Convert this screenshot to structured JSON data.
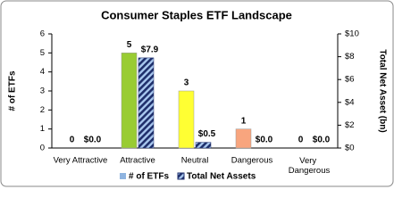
{
  "chart_data": {
    "type": "bar",
    "title": "Consumer Staples ETF Landscape",
    "y_label": "# of ETFs",
    "y2_label": "Total Net Asset (bn)",
    "categories": [
      "Very Attractive",
      "Attractive",
      "Neutral",
      "Dangerous",
      "Very Dangerous"
    ],
    "series": [
      {
        "name": "# of ETFs",
        "color": "#8fb4e0",
        "colors": [
          "#c8c8c8",
          "#99cc33",
          "#ffff33",
          "#f8a57e",
          "#c8c8c8"
        ],
        "values": [
          0,
          5,
          3,
          1,
          0
        ]
      },
      {
        "name": "Total Net Assets",
        "axis": "y2",
        "color": "#1f2f6b",
        "hatch": true,
        "values": [
          0.0,
          7.9,
          0.5,
          0.0,
          0.0
        ],
        "value_labels": [
          "$0.0",
          "$7.9",
          "$0.5",
          "$0.0",
          "$0.0"
        ]
      }
    ],
    "ylim": [
      0,
      6
    ],
    "yticks": [
      0,
      1,
      2,
      3,
      4,
      5,
      6
    ],
    "y2lim": [
      0,
      10
    ],
    "y2ticks": [
      {
        "value": 0,
        "label": "$0"
      },
      {
        "value": 2,
        "label": "$2"
      },
      {
        "value": 4,
        "label": "$4"
      },
      {
        "value": 6,
        "label": "$6"
      },
      {
        "value": 8,
        "label": "$8"
      },
      {
        "value": 10,
        "label": "$10"
      }
    ],
    "legend": "bottom"
  }
}
